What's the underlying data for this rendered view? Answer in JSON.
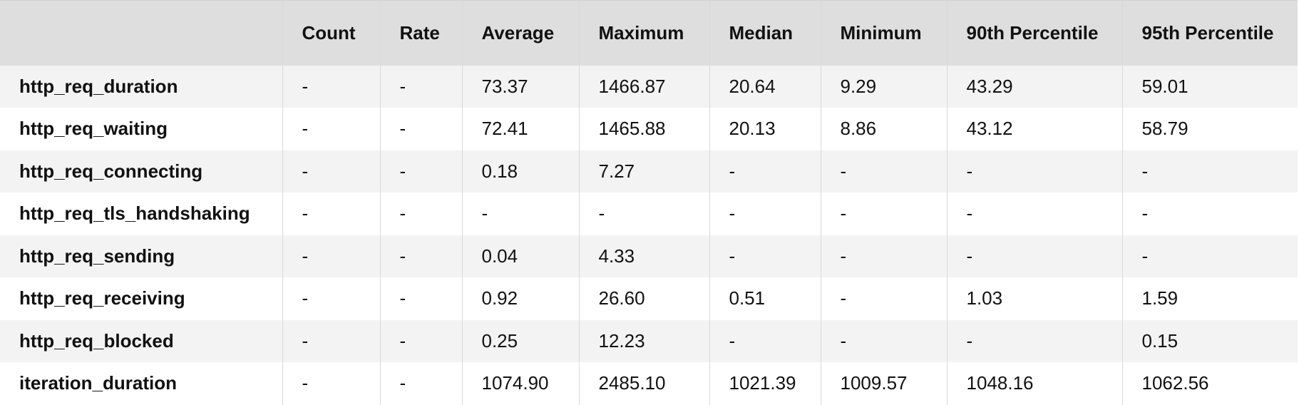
{
  "headers": [
    "",
    "Count",
    "Rate",
    "Average",
    "Maximum",
    "Median",
    "Minimum",
    "90th Percentile",
    "95th Percentile"
  ],
  "rows": [
    {
      "metric": "http_req_duration",
      "values": [
        "-",
        "-",
        "73.37",
        "1466.87",
        "20.64",
        "9.29",
        "43.29",
        "59.01"
      ]
    },
    {
      "metric": "http_req_waiting",
      "values": [
        "-",
        "-",
        "72.41",
        "1465.88",
        "20.13",
        "8.86",
        "43.12",
        "58.79"
      ]
    },
    {
      "metric": "http_req_connecting",
      "values": [
        "-",
        "-",
        "0.18",
        "7.27",
        "-",
        "-",
        "-",
        "-"
      ]
    },
    {
      "metric": "http_req_tls_handshaking",
      "values": [
        "-",
        "-",
        "-",
        "-",
        "-",
        "-",
        "-",
        "-"
      ]
    },
    {
      "metric": "http_req_sending",
      "values": [
        "-",
        "-",
        "0.04",
        "4.33",
        "-",
        "-",
        "-",
        "-"
      ]
    },
    {
      "metric": "http_req_receiving",
      "values": [
        "-",
        "-",
        "0.92",
        "26.60",
        "0.51",
        "-",
        "1.03",
        "1.59"
      ]
    },
    {
      "metric": "http_req_blocked",
      "values": [
        "-",
        "-",
        "0.25",
        "12.23",
        "-",
        "-",
        "-",
        "0.15"
      ]
    },
    {
      "metric": "iteration_duration",
      "values": [
        "-",
        "-",
        "1074.90",
        "2485.10",
        "1021.39",
        "1009.57",
        "1048.16",
        "1062.56"
      ]
    }
  ]
}
